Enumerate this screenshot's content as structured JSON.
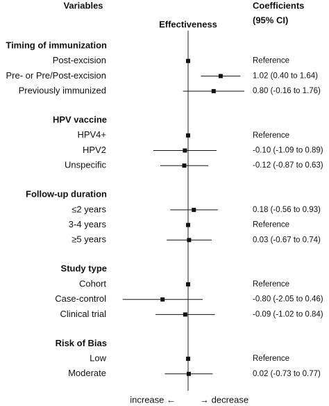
{
  "chart_data": {
    "type": "forest",
    "headers": {
      "variables": "Variables",
      "axis_title": "Effectiveness",
      "coefficients": [
        "Coefficients",
        "(95% CI)"
      ]
    },
    "footer": {
      "left": "increase ←",
      "right": "→ decrease"
    },
    "xlim": [
      -2.5,
      2.5
    ],
    "color": "#111111",
    "groups": [
      {
        "name": "Timing of immunization",
        "rows": [
          {
            "label": "Post-excision",
            "estimate": 0,
            "ci": null,
            "value_label": "Reference"
          },
          {
            "label": "Pre- or Pre/Post-excision",
            "estimate": 1.02,
            "ci": [
              0.4,
              1.64
            ],
            "value_label": "1.02 (0.40 to 1.64)"
          },
          {
            "label": "Previously immunized",
            "estimate": 0.8,
            "ci": [
              -0.16,
              1.76
            ],
            "value_label": "0.80 (-0.16 to 1.76)"
          }
        ]
      },
      {
        "name": "HPV vaccine",
        "rows": [
          {
            "label": "HPV4+",
            "estimate": 0,
            "ci": null,
            "value_label": "Reference"
          },
          {
            "label": "HPV2",
            "estimate": -0.1,
            "ci": [
              -1.09,
              0.89
            ],
            "value_label": "-0.10 (-1.09 to 0.89)"
          },
          {
            "label": "Unspecific",
            "estimate": -0.12,
            "ci": [
              -0.87,
              0.63
            ],
            "value_label": "-0.12 (-0.87 to 0.63)"
          }
        ]
      },
      {
        "name": "Follow-up duration",
        "rows": [
          {
            "label": "≤2 years",
            "estimate": 0.18,
            "ci": [
              -0.56,
              0.93
            ],
            "value_label": "0.18 (-0.56 to 0.93)"
          },
          {
            "label": "3-4 years",
            "estimate": 0,
            "ci": null,
            "value_label": "Reference"
          },
          {
            "label": "≥5 years",
            "estimate": 0.03,
            "ci": [
              -0.67,
              0.74
            ],
            "value_label": "0.03 (-0.67 to 0.74)"
          }
        ]
      },
      {
        "name": "Study type",
        "rows": [
          {
            "label": "Cohort",
            "estimate": 0,
            "ci": null,
            "value_label": "Reference"
          },
          {
            "label": "Case-control",
            "estimate": -0.8,
            "ci": [
              -2.05,
              0.46
            ],
            "value_label": "-0.80 (-2.05 to 0.46)"
          },
          {
            "label": "Clinical trial",
            "estimate": -0.09,
            "ci": [
              -1.02,
              0.84
            ],
            "value_label": "-0.09 (-1.02 to 0.84)"
          }
        ]
      },
      {
        "name": "Risk of Bias",
        "rows": [
          {
            "label": "Low",
            "estimate": 0,
            "ci": null,
            "value_label": "Reference"
          },
          {
            "label": "Moderate",
            "estimate": 0.02,
            "ci": [
              -0.73,
              0.77
            ],
            "value_label": "0.02 (-0.73 to 0.77)"
          }
        ]
      }
    ]
  }
}
